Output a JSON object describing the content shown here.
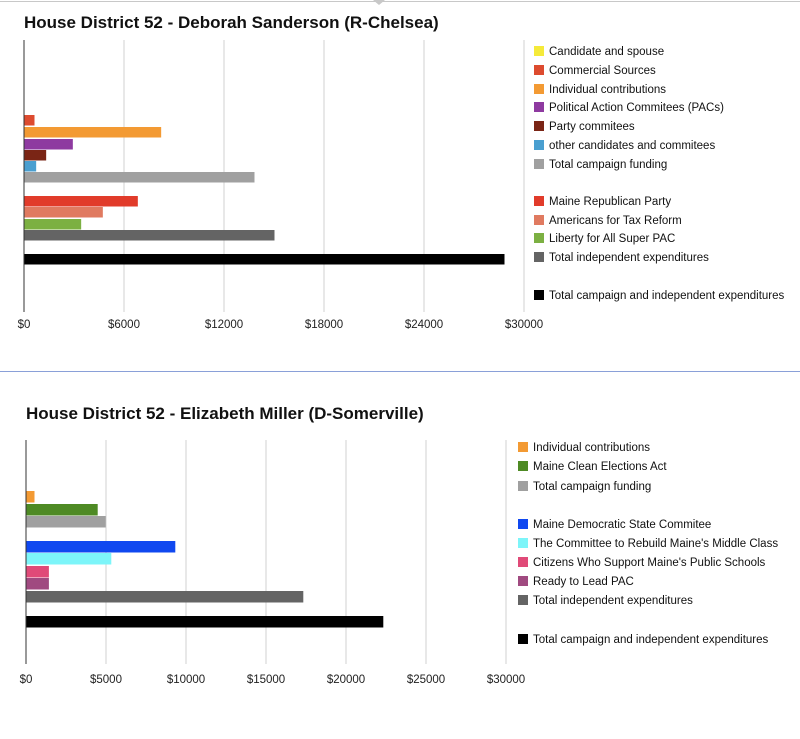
{
  "chart_data": [
    {
      "type": "bar",
      "title": "House District 52 - Deborah Sanderson (R-Chelsea)",
      "xlim": [
        0,
        30000
      ],
      "x_ticks": [
        "$0",
        "$6000",
        "$12000",
        "$18000",
        "$24000",
        "$30000"
      ],
      "grid": true,
      "legend_position": "right",
      "series": [
        {
          "name": "Candidate and spouse",
          "color": "#f5ea3a",
          "value": 0,
          "group": 1
        },
        {
          "name": "Commercial Sources",
          "color": "#dd4b2f",
          "value": 600,
          "group": 1
        },
        {
          "name": "Individual contributions",
          "color": "#f39a33",
          "value": 8200,
          "group": 1
        },
        {
          "name": "Political Action Commitees (PACs)",
          "color": "#8e3aa0",
          "value": 2900,
          "group": 1
        },
        {
          "name": "Party commitees",
          "color": "#7a2515",
          "value": 1300,
          "group": 1
        },
        {
          "name": "other candidates and commitees",
          "color": "#4a9fd0",
          "value": 700,
          "group": 1
        },
        {
          "name": "Total campaign funding",
          "color": "#a0a0a0",
          "value": 13800,
          "group": 1
        },
        {
          "name": "Maine Republican Party",
          "color": "#e13b2a",
          "value": 6800,
          "group": 2
        },
        {
          "name": "Americans for Tax Reform",
          "color": "#e07a60",
          "value": 4700,
          "group": 2
        },
        {
          "name": "Liberty for All Super PAC",
          "color": "#7cb042",
          "value": 3400,
          "group": 2
        },
        {
          "name": "Total independent expenditures",
          "color": "#646464",
          "value": 15000,
          "group": 2
        },
        {
          "name": "Total campaign and independent expenditures",
          "color": "#000000",
          "value": 28800,
          "group": 3
        }
      ]
    },
    {
      "type": "bar",
      "title": "House District 52 - Elizabeth Miller (D-Somerville)",
      "xlim": [
        0,
        30000
      ],
      "x_ticks": [
        "$0",
        "$5000",
        "$10000",
        "$15000",
        "$20000",
        "$25000",
        "$30000"
      ],
      "grid": true,
      "legend_position": "right",
      "series": [
        {
          "name": "Individual contributions",
          "color": "#f39a33",
          "value": 500,
          "group": 1
        },
        {
          "name": "Maine Clean Elections Act",
          "color": "#4e8a24",
          "value": 4450,
          "group": 1
        },
        {
          "name": "Total campaign funding",
          "color": "#a0a0a0",
          "value": 4950,
          "group": 1
        },
        {
          "name": "Maine Democratic State Commitee",
          "color": "#1048f0",
          "value": 9300,
          "group": 2
        },
        {
          "name": "The Committee to Rebuild Maine's Middle Class",
          "color": "#7df5f9",
          "value": 5300,
          "group": 2
        },
        {
          "name": "Citizens Who Support Maine's Public Schools",
          "color": "#e04a78",
          "value": 1400,
          "group": 2
        },
        {
          "name": "Ready to Lead PAC",
          "color": "#a04a80",
          "value": 1400,
          "group": 2
        },
        {
          "name": "Total independent expenditures",
          "color": "#646464",
          "value": 17300,
          "group": 2
        },
        {
          "name": "Total campaign and independent expenditures",
          "color": "#000000",
          "value": 22300,
          "group": 3
        }
      ]
    }
  ]
}
